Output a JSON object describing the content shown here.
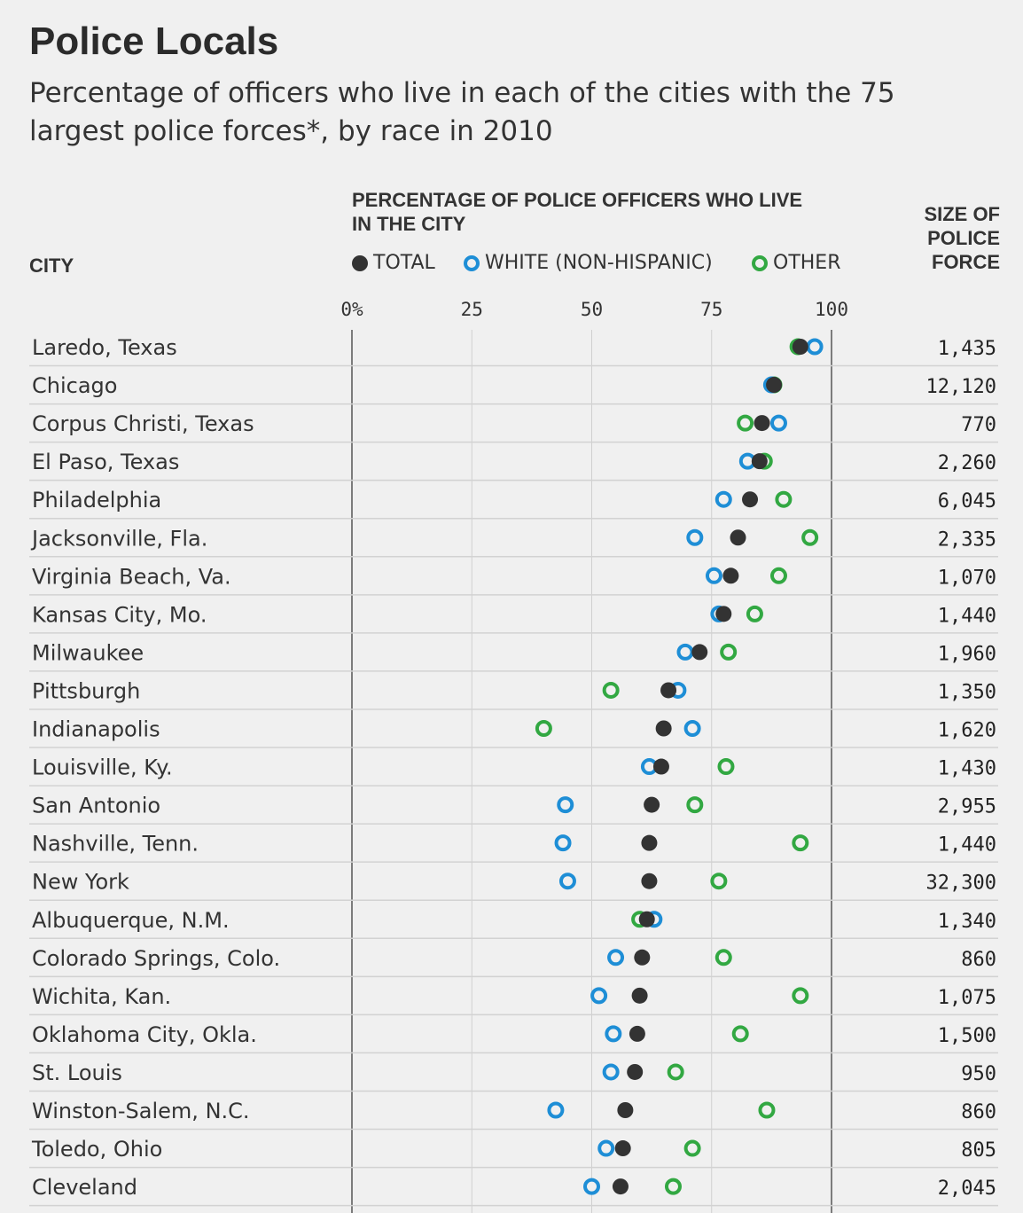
{
  "title": "Police Locals",
  "subtitle": "Percentage of officers who live in each of the cities with the 75 largest police forces*, by race in 2010",
  "headers": {
    "city": "CITY",
    "pct": "PERCENTAGE OF POLICE OFFICERS WHO LIVE IN THE CITY",
    "size_lines": [
      "SIZE OF",
      "POLICE",
      "FORCE"
    ]
  },
  "legend": [
    {
      "key": "total",
      "label": "TOTAL",
      "color": "#333333",
      "style": "filled"
    },
    {
      "key": "white",
      "label": "WHITE (NON-HISPANIC)",
      "color": "#1e8ed6",
      "style": "ring"
    },
    {
      "key": "other",
      "label": "OTHER",
      "color": "#32a842",
      "style": "ring"
    }
  ],
  "chart_data": {
    "type": "dot",
    "title": "Police Locals",
    "x_axis": {
      "label": "PERCENTAGE OF POLICE OFFICERS WHO LIVE IN THE CITY",
      "range": [
        0,
        100
      ],
      "ticks": [
        0,
        25,
        50,
        75,
        100
      ],
      "tick_labels": [
        "0%",
        "25",
        "50",
        "75",
        "100"
      ]
    },
    "series_order": [
      "other",
      "white",
      "total"
    ],
    "rows": [
      {
        "city": "Laredo, Texas",
        "total": 93.5,
        "white": 96.5,
        "other": 93,
        "size": "1,435"
      },
      {
        "city": "Chicago",
        "total": 88.0,
        "white": 87.5,
        "other": 88,
        "size": "12,120"
      },
      {
        "city": "Corpus Christi, Texas",
        "total": 85.5,
        "white": 89.0,
        "other": 82,
        "size": "770"
      },
      {
        "city": "El Paso, Texas",
        "total": 85.0,
        "white": 82.5,
        "other": 86,
        "size": "2,260"
      },
      {
        "city": "Philadelphia",
        "total": 83.0,
        "white": 77.5,
        "other": 90,
        "size": "6,045"
      },
      {
        "city": "Jacksonville, Fla.",
        "total": 80.5,
        "white": 71.5,
        "other": 95.5,
        "size": "2,335"
      },
      {
        "city": "Virginia Beach, Va.",
        "total": 79.0,
        "white": 75.5,
        "other": 89,
        "size": "1,070"
      },
      {
        "city": "Kansas City, Mo.",
        "total": 77.5,
        "white": 76.5,
        "other": 84,
        "size": "1,440"
      },
      {
        "city": "Milwaukee",
        "total": 72.5,
        "white": 69.5,
        "other": 78.5,
        "size": "1,960"
      },
      {
        "city": "Pittsburgh",
        "total": 66.0,
        "white": 68.0,
        "other": 54,
        "size": "1,350"
      },
      {
        "city": "Indianapolis",
        "total": 65.0,
        "white": 71.0,
        "other": 40,
        "size": "1,620"
      },
      {
        "city": "Louisville, Ky.",
        "total": 64.5,
        "white": 62.0,
        "other": 78,
        "size": "1,430"
      },
      {
        "city": "San Antonio",
        "total": 62.5,
        "white": 44.5,
        "other": 71.5,
        "size": "2,955"
      },
      {
        "city": "Nashville, Tenn.",
        "total": 62.0,
        "white": 44.0,
        "other": 93.5,
        "size": "1,440"
      },
      {
        "city": "New York",
        "total": 62.0,
        "white": 45.0,
        "other": 76.5,
        "size": "32,300"
      },
      {
        "city": "Albuquerque, N.M.",
        "total": 61.5,
        "white": 63.0,
        "other": 60,
        "size": "1,340"
      },
      {
        "city": "Colorado Springs, Colo.",
        "total": 60.5,
        "white": 55.0,
        "other": 77.5,
        "size": "860"
      },
      {
        "city": "Wichita, Kan.",
        "total": 60.0,
        "white": 51.5,
        "other": 93.5,
        "size": "1,075"
      },
      {
        "city": "Oklahoma City, Okla.",
        "total": 59.5,
        "white": 54.5,
        "other": 81,
        "size": "1,500"
      },
      {
        "city": "St. Louis",
        "total": 59.0,
        "white": 54.0,
        "other": 67.5,
        "size": "950"
      },
      {
        "city": "Winston-Salem, N.C.",
        "total": 57.0,
        "white": 42.5,
        "other": 86.5,
        "size": "860"
      },
      {
        "city": "Toledo, Ohio",
        "total": 56.5,
        "white": 53.0,
        "other": 71,
        "size": "805"
      },
      {
        "city": "Cleveland",
        "total": 56.0,
        "white": 50.0,
        "other": 67,
        "size": "2,045"
      }
    ]
  }
}
